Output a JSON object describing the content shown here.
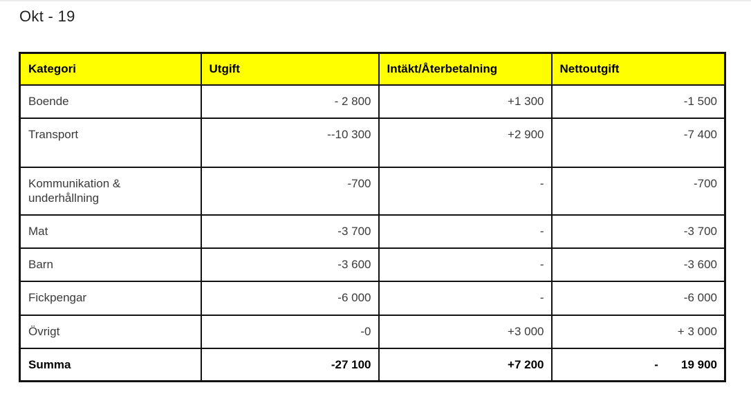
{
  "page": {
    "title": "Okt - 19"
  },
  "table": {
    "headers": [
      "Kategori",
      "Utgift",
      "Intäkt/Återbetalning",
      "Nettoutgift"
    ],
    "rows": [
      {
        "kategori": "Boende",
        "utgift": "- 2 800",
        "intakt": "+1 300",
        "netto": "-1 500"
      },
      {
        "kategori": "Transport",
        "utgift": "--10 300",
        "intakt": "+2 900",
        "netto": "-7 400"
      },
      {
        "kategori": "Kommunikation & underhållning",
        "utgift": "-700",
        "intakt": "-",
        "netto": "-700"
      },
      {
        "kategori": "Mat",
        "utgift": "-3 700",
        "intakt": "-",
        "netto": "-3 700"
      },
      {
        "kategori": "Barn",
        "utgift": "-3 600",
        "intakt": "-",
        "netto": "-3 600"
      },
      {
        "kategori": "Fickpengar",
        "utgift": "-6 000",
        "intakt": "-",
        "netto": "-6 000"
      },
      {
        "kategori": "Övrigt",
        "utgift": "-0",
        "intakt": "+3 000",
        "netto": "+ 3 000"
      }
    ],
    "summary": {
      "kategori": "Summa",
      "utgift": "-27 100",
      "intakt": "+7 200",
      "netto": "-       19 900"
    }
  },
  "colors": {
    "header_bg": "#ffff00",
    "border_color": "#111111",
    "text_color": "#3a3a3a"
  }
}
